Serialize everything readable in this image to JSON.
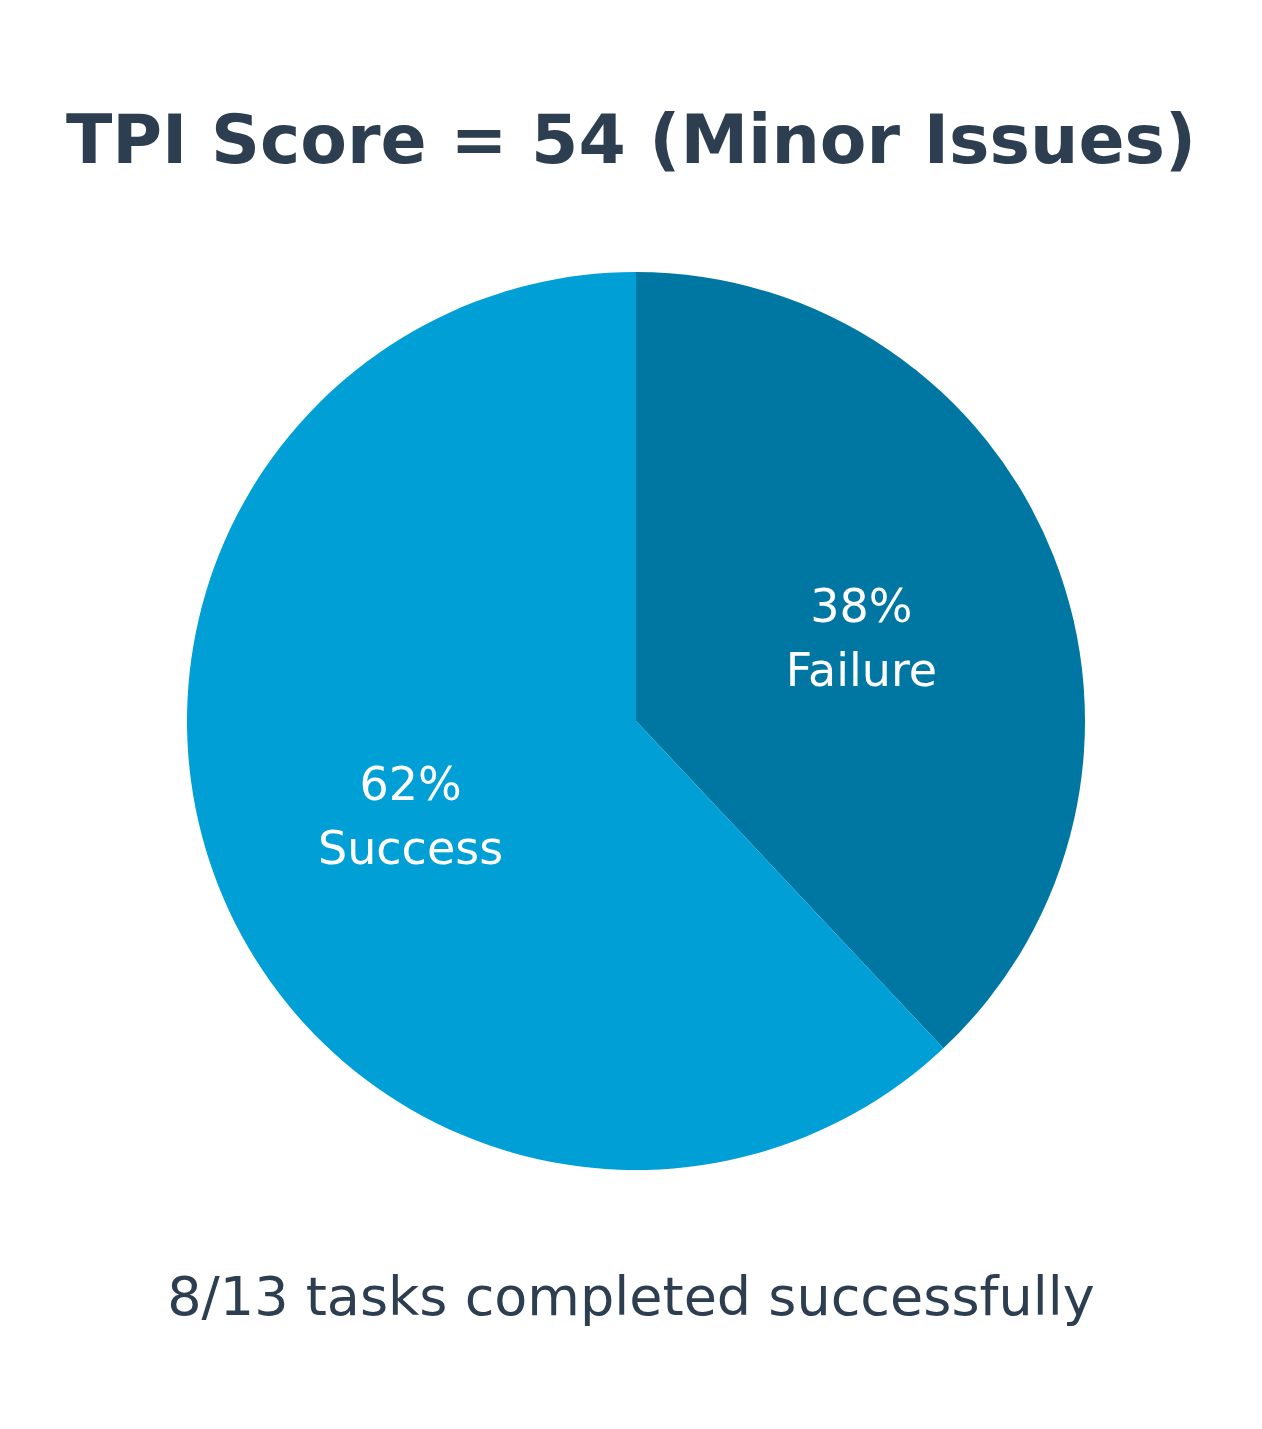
{
  "chart_data": {
    "type": "pie",
    "title": "TPI Score = 54 (Minor Issues)",
    "categories": [
      "Failure",
      "Success"
    ],
    "values": [
      38,
      62
    ],
    "value_labels": [
      "38%",
      "62%"
    ],
    "colors": [
      "#0077a3",
      "#009fd6"
    ],
    "legend": false,
    "annotations": [
      "8/13 tasks completed successfully"
    ]
  }
}
